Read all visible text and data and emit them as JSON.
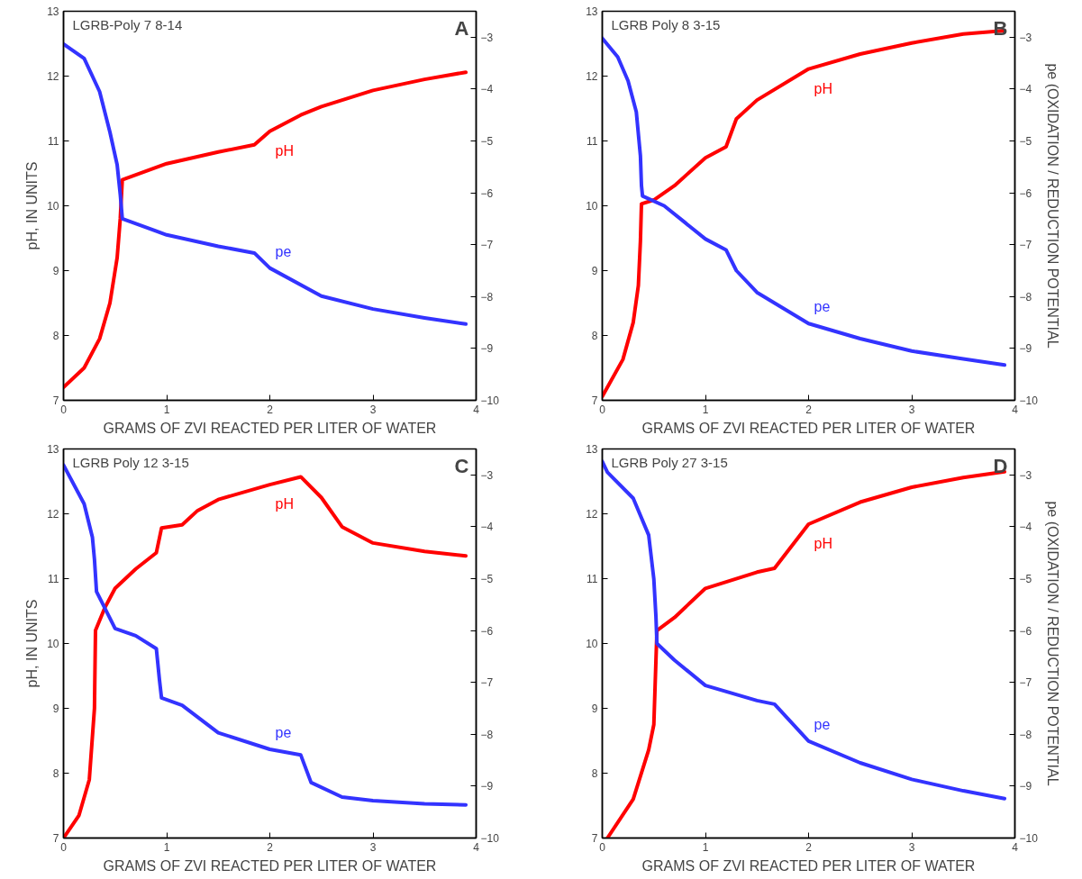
{
  "chart_data": [
    {
      "type": "line",
      "xlabel": "GRAMS OF ZVI REACTED PER LITER OF WATER",
      "ylabel": "pH, IN UNITS",
      "annotations": [
        "LGRB-Poly 7 8-14",
        "A"
      ],
      "xlim": [
        0,
        4
      ],
      "xticks": [
        0,
        1,
        2,
        3,
        4
      ],
      "ylim": [
        7,
        13
      ],
      "yticks": [
        7,
        8,
        9,
        10,
        11,
        12,
        13
      ],
      "y2lim": [
        -10,
        -2.5
      ],
      "y2ticks": [
        -10,
        -9,
        -8,
        -7,
        -6,
        -5,
        -4,
        -3
      ],
      "grid": false,
      "line_style": "solid",
      "series": [
        {
          "name": "pH",
          "color": "#ff0000",
          "x": [
            0,
            0.2,
            0.35,
            0.45,
            0.52,
            0.55,
            0.57,
            1.0,
            1.5,
            1.85,
            2.0,
            2.3,
            2.5,
            3.0,
            3.5,
            3.9
          ],
          "values": [
            7.2,
            7.5,
            7.95,
            8.5,
            9.2,
            9.8,
            10.4,
            10.65,
            10.83,
            10.94,
            11.15,
            11.4,
            11.53,
            11.78,
            11.95,
            12.06
          ]
        },
        {
          "name": "pe",
          "color": "#3333ff",
          "axis": "y2",
          "x": [
            0,
            0.2,
            0.35,
            0.45,
            0.52,
            0.55,
            0.57,
            1.0,
            1.5,
            1.85,
            2.0,
            2.5,
            3.0,
            3.5,
            3.9
          ],
          "values": [
            -3.13,
            -3.41,
            -4.05,
            -4.83,
            -5.46,
            -6.03,
            -6.5,
            -6.81,
            -7.03,
            -7.16,
            -7.45,
            -7.99,
            -8.24,
            -8.41,
            -8.53
          ]
        }
      ]
    },
    {
      "type": "line",
      "xlabel": "GRAMS OF ZVI REACTED PER LITER OF WATER",
      "y2label": "pe (OXIDATION / REDUCTION POTENTIAL",
      "annotations": [
        "LGRB Poly 8 3-15",
        "B"
      ],
      "xlim": [
        0,
        4
      ],
      "xticks": [
        0,
        1,
        2,
        3,
        4
      ],
      "ylim": [
        7,
        13
      ],
      "yticks": [
        7,
        8,
        9,
        10,
        11,
        12,
        13
      ],
      "y2lim": [
        -10,
        -2.5
      ],
      "y2ticks": [
        -10,
        -9,
        -8,
        -7,
        -6,
        -5,
        -4,
        -3
      ],
      "grid": false,
      "line_style": "solid",
      "series": [
        {
          "name": "pH",
          "color": "#ff0000",
          "x": [
            0,
            0.2,
            0.3,
            0.35,
            0.37,
            0.38,
            0.5,
            0.7,
            1.0,
            1.2,
            1.3,
            1.5,
            2.0,
            2.5,
            3.0,
            3.5,
            3.9
          ],
          "values": [
            7.06,
            7.63,
            8.2,
            8.77,
            9.46,
            10.03,
            10.09,
            10.31,
            10.74,
            10.91,
            11.34,
            11.63,
            12.11,
            12.34,
            12.51,
            12.65,
            12.7
          ]
        },
        {
          "name": "pe",
          "color": "#3333ff",
          "axis": "y2",
          "x": [
            0,
            0.15,
            0.25,
            0.33,
            0.37,
            0.38,
            0.39,
            0.6,
            0.8,
            1.0,
            1.2,
            1.3,
            1.5,
            2.0,
            2.5,
            3.0,
            3.5,
            3.9
          ],
          "values": [
            -3.02,
            -3.38,
            -3.84,
            -4.44,
            -5.29,
            -5.86,
            -6.06,
            -6.25,
            -6.57,
            -6.89,
            -7.1,
            -7.5,
            -7.92,
            -8.52,
            -8.81,
            -9.05,
            -9.2,
            -9.32
          ]
        }
      ]
    },
    {
      "type": "line",
      "xlabel": "GRAMS OF ZVI REACTED PER LITER OF WATER",
      "ylabel": "pH, IN UNITS",
      "annotations": [
        "LGRB Poly 12 3-15",
        "C"
      ],
      "xlim": [
        0,
        4
      ],
      "xticks": [
        0,
        1,
        2,
        3,
        4
      ],
      "ylim": [
        7,
        13
      ],
      "yticks": [
        7,
        8,
        9,
        10,
        11,
        12,
        13
      ],
      "y2lim": [
        -10,
        -2.5
      ],
      "y2ticks": [
        -10,
        -9,
        -8,
        -7,
        -6,
        -5,
        -4,
        -3
      ],
      "grid": false,
      "line_style": "solid",
      "series": [
        {
          "name": "pH",
          "color": "#ff0000",
          "x": [
            0,
            0.15,
            0.25,
            0.3,
            0.31,
            0.4,
            0.5,
            0.7,
            0.9,
            0.95,
            1.15,
            1.3,
            1.5,
            2.0,
            2.3,
            2.5,
            2.7,
            3.0,
            3.5,
            3.9
          ],
          "values": [
            7.0,
            7.35,
            7.9,
            9.0,
            10.2,
            10.55,
            10.85,
            11.15,
            11.4,
            11.78,
            11.83,
            12.05,
            12.22,
            12.45,
            12.57,
            12.25,
            11.8,
            11.55,
            11.42,
            11.35
          ]
        },
        {
          "name": "pe",
          "color": "#3333ff",
          "axis": "y2",
          "x": [
            0,
            0.2,
            0.28,
            0.3,
            0.32,
            0.5,
            0.7,
            0.9,
            0.93,
            0.95,
            1.15,
            1.5,
            2.0,
            2.3,
            2.4,
            2.7,
            3.0,
            3.5,
            3.9
          ],
          "values": [
            -2.81,
            -3.56,
            -4.2,
            -4.63,
            -5.25,
            -5.96,
            -6.1,
            -6.35,
            -6.95,
            -7.3,
            -7.44,
            -7.97,
            -8.29,
            -8.4,
            -8.93,
            -9.21,
            -9.28,
            -9.34,
            -9.36
          ]
        }
      ]
    },
    {
      "type": "line",
      "xlabel": "GRAMS OF ZVI REACTED PER LITER OF WATER",
      "y2label": "pe (OXIDATION / REDUCTION POTENTIAL",
      "annotations": [
        "LGRB Poly 27 3-15",
        "D"
      ],
      "xlim": [
        0,
        4
      ],
      "xticks": [
        0,
        1,
        2,
        3,
        4
      ],
      "ylim": [
        7,
        13
      ],
      "yticks": [
        7,
        8,
        9,
        10,
        11,
        12,
        13
      ],
      "y2lim": [
        -10,
        -2.5
      ],
      "y2ticks": [
        -10,
        -9,
        -8,
        -7,
        -6,
        -5,
        -4,
        -3
      ],
      "grid": false,
      "line_style": "solid",
      "series": [
        {
          "name": "pH",
          "color": "#ff0000",
          "x": [
            0.05,
            0.3,
            0.45,
            0.5,
            0.52,
            0.53,
            0.7,
            1.0,
            1.5,
            1.67,
            2.0,
            2.5,
            3.0,
            3.5,
            3.9
          ],
          "values": [
            7.0,
            7.6,
            8.36,
            8.75,
            9.72,
            10.2,
            10.4,
            10.85,
            11.1,
            11.16,
            11.84,
            12.18,
            12.41,
            12.56,
            12.65
          ]
        },
        {
          "name": "pe",
          "color": "#3333ff",
          "axis": "y2",
          "x": [
            0,
            0.05,
            0.3,
            0.45,
            0.5,
            0.52,
            0.53,
            0.7,
            1.0,
            1.5,
            1.67,
            2.0,
            2.5,
            3.0,
            3.5,
            3.9
          ],
          "values": [
            -2.74,
            -2.95,
            -3.45,
            -4.16,
            -5.01,
            -5.72,
            -6.25,
            -6.57,
            -7.06,
            -7.35,
            -7.42,
            -8.13,
            -8.55,
            -8.87,
            -9.09,
            -9.24
          ]
        }
      ]
    }
  ]
}
